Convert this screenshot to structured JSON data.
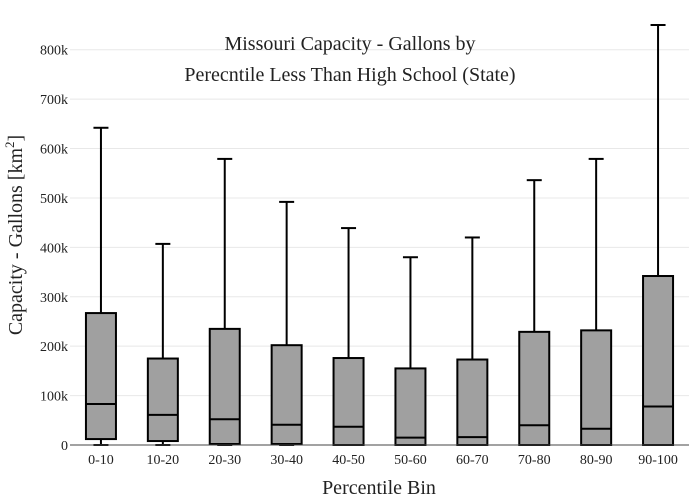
{
  "chart_data": {
    "type": "box",
    "title_lines": [
      "Missouri Capacity - Gallons by",
      "Perecntile Less Than High School (State)"
    ],
    "xlabel": "Percentile Bin",
    "ylabel_main": "Capacity - Gallons  [km",
    "ylabel_sup": "2",
    "ylabel_end": "]",
    "ylim": [
      0,
      850000
    ],
    "yticks": [
      0,
      100000,
      200000,
      300000,
      400000,
      500000,
      600000,
      700000,
      800000
    ],
    "ytick_labels": [
      "0",
      "100k",
      "200k",
      "300k",
      "400k",
      "500k",
      "600k",
      "700k",
      "800k"
    ],
    "grid": true,
    "categories": [
      "0-10",
      "10-20",
      "20-30",
      "30-40",
      "40-50",
      "50-60",
      "60-70",
      "70-80",
      "80-90",
      "90-100"
    ],
    "boxes": [
      {
        "min": 0,
        "q1": 12000,
        "median": 83000,
        "q3": 267000,
        "max": 642000
      },
      {
        "min": 0,
        "q1": 8000,
        "median": 61000,
        "q3": 175000,
        "max": 407000
      },
      {
        "min": 0,
        "q1": 2000,
        "median": 52000,
        "q3": 235000,
        "max": 579000
      },
      {
        "min": 0,
        "q1": 2000,
        "median": 41000,
        "q3": 202000,
        "max": 492000
      },
      {
        "min": 0,
        "q1": 0,
        "median": 37000,
        "q3": 176000,
        "max": 439000
      },
      {
        "min": 0,
        "q1": 0,
        "median": 15000,
        "q3": 155000,
        "max": 380000
      },
      {
        "min": 0,
        "q1": 0,
        "median": 16000,
        "q3": 173000,
        "max": 420000
      },
      {
        "min": 0,
        "q1": 0,
        "median": 40000,
        "q3": 229000,
        "max": 536000
      },
      {
        "min": 0,
        "q1": 0,
        "median": 33000,
        "q3": 232000,
        "max": 579000
      },
      {
        "min": 0,
        "q1": 0,
        "median": 78000,
        "q3": 342000,
        "max": 850000
      }
    ]
  }
}
